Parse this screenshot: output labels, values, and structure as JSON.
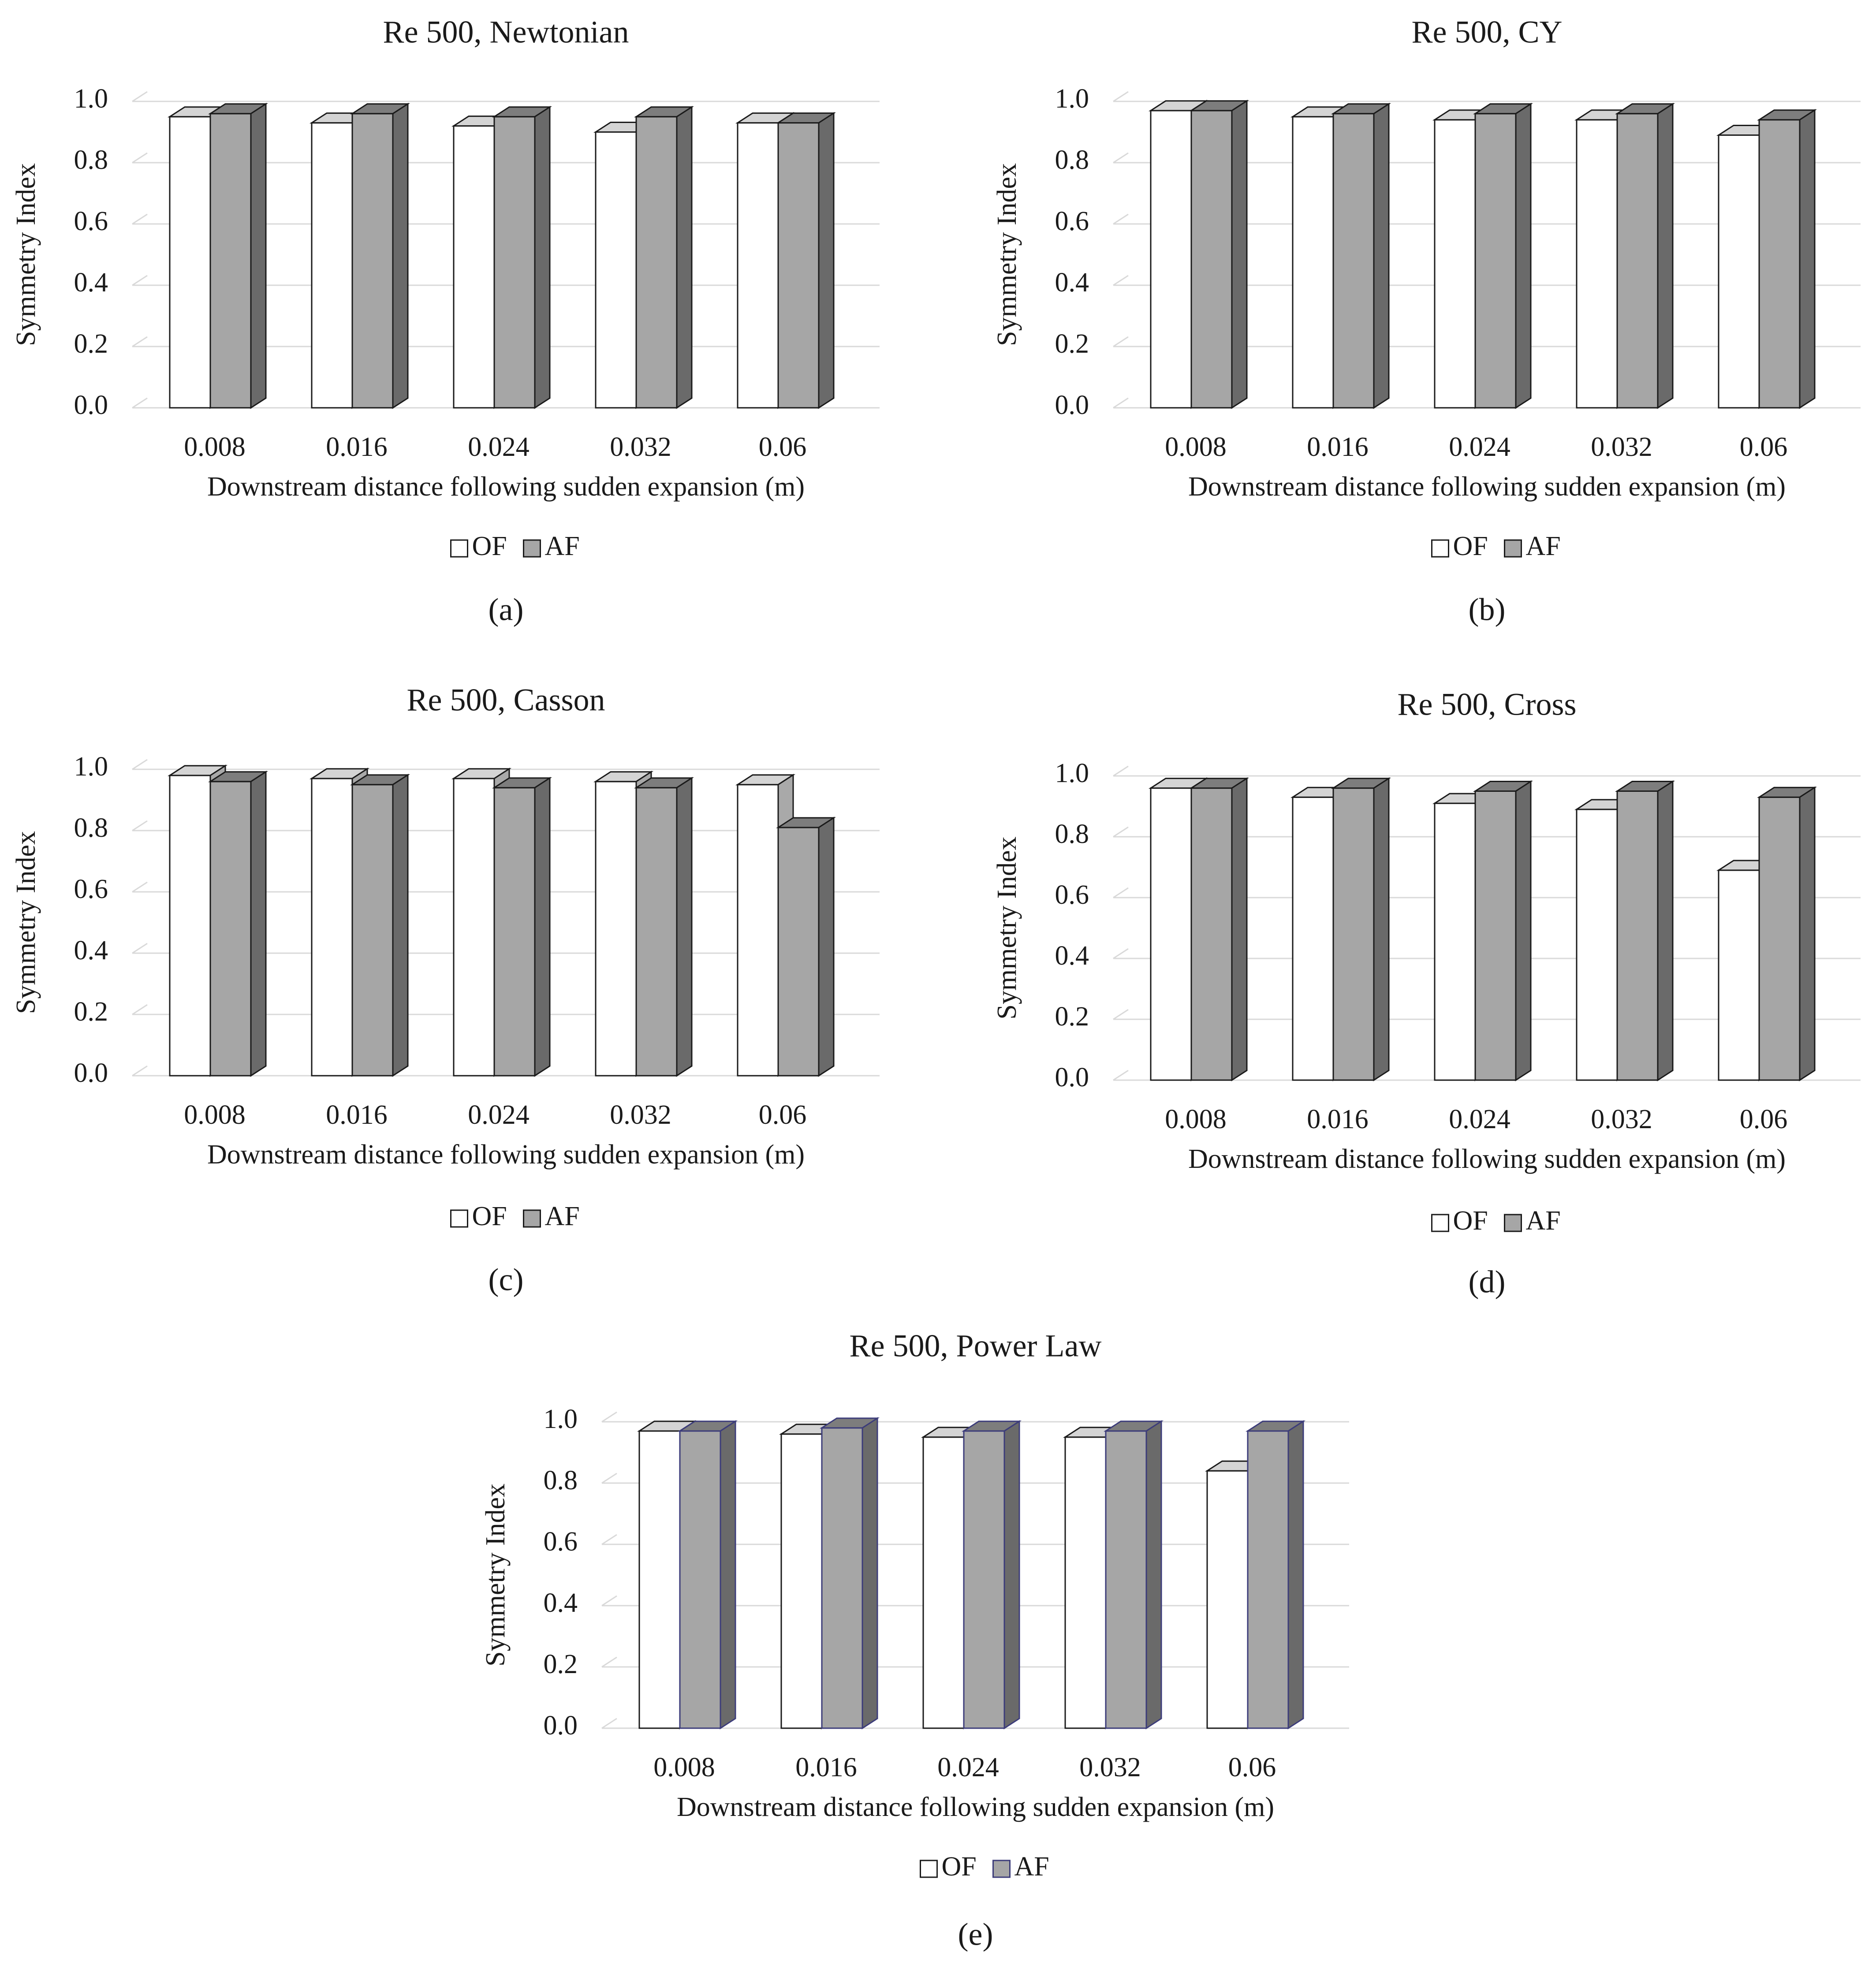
{
  "figure": {
    "background": "#ffffff"
  },
  "colors": {
    "of_front": "#ffffff",
    "of_top": "#d4d4d4",
    "of_side": "#a9a9a9",
    "af_front": "#a6a6a6",
    "af_top": "#7d7d7d",
    "af_side": "#6a6a6a",
    "edge": "#1a1a1a",
    "edge_e": "#3c3c7a",
    "grid": "#d9d9d9"
  },
  "chart_data": [
    {
      "id": "a",
      "type": "bar",
      "title": "Re 500, Newtonian",
      "xlabel": "Downstream distance following  sudden expansion (m)",
      "ylabel": "Symmetry Index",
      "ylim": [
        0,
        1.0
      ],
      "yticks": [
        "0.0",
        "0.2",
        "0.4",
        "0.6",
        "0.8",
        "1.0"
      ],
      "categories": [
        "0.008",
        "0.016",
        "0.024",
        "0.032",
        "0.06"
      ],
      "series": [
        {
          "name": "OF",
          "values": [
            0.95,
            0.93,
            0.92,
            0.9,
            0.93
          ]
        },
        {
          "name": "AF",
          "values": [
            0.96,
            0.96,
            0.95,
            0.95,
            0.93
          ]
        }
      ],
      "legend": {
        "placement": "bottom",
        "labels": [
          "OF",
          "AF"
        ]
      },
      "caption": "(a)",
      "grid": true
    },
    {
      "id": "b",
      "type": "bar",
      "title": "Re 500, CY",
      "xlabel": "Downstream distance following  sudden expansion (m)",
      "ylabel": "Symmetry Index",
      "ylim": [
        0,
        1.0
      ],
      "yticks": [
        "0.0",
        "0.2",
        "0.4",
        "0.6",
        "0.8",
        "1.0"
      ],
      "categories": [
        "0.008",
        "0.016",
        "0.024",
        "0.032",
        "0.06"
      ],
      "series": [
        {
          "name": "OF",
          "values": [
            0.97,
            0.95,
            0.94,
            0.94,
            0.89
          ]
        },
        {
          "name": "AF",
          "values": [
            0.97,
            0.96,
            0.96,
            0.96,
            0.94
          ]
        }
      ],
      "legend": {
        "placement": "bottom",
        "labels": [
          "OF",
          "AF"
        ]
      },
      "caption": "(b)",
      "grid": true
    },
    {
      "id": "c",
      "type": "bar",
      "title": "Re 500, Casson",
      "xlabel": "Downstream distance following  sudden expansion (m)",
      "ylabel": "Symmetry Index",
      "ylim": [
        0,
        1.0
      ],
      "yticks": [
        "0.0",
        "0.2",
        "0.4",
        "0.6",
        "0.8",
        "1.0"
      ],
      "categories": [
        "0.008",
        "0.016",
        "0.024",
        "0.032",
        "0.06"
      ],
      "series": [
        {
          "name": "OF",
          "values": [
            0.98,
            0.97,
            0.97,
            0.96,
            0.95
          ]
        },
        {
          "name": "AF",
          "values": [
            0.96,
            0.95,
            0.94,
            0.94,
            0.81
          ]
        }
      ],
      "legend": {
        "placement": "bottom",
        "labels": [
          "OF",
          "AF"
        ]
      },
      "caption": "(c)",
      "grid": true
    },
    {
      "id": "d",
      "type": "bar",
      "title": "Re 500, Cross",
      "xlabel": "Downstream distance following  sudden expansion (m)",
      "ylabel": "Symmetry Index",
      "ylim": [
        0,
        1.0
      ],
      "yticks": [
        "0.0",
        "0.2",
        "0.4",
        "0.6",
        "0.8",
        "1.0"
      ],
      "categories": [
        "0.008",
        "0.016",
        "0.024",
        "0.032",
        "0.06"
      ],
      "series": [
        {
          "name": "OF",
          "values": [
            0.96,
            0.93,
            0.91,
            0.89,
            0.69
          ]
        },
        {
          "name": "AF",
          "values": [
            0.96,
            0.96,
            0.95,
            0.95,
            0.93
          ]
        }
      ],
      "legend": {
        "placement": "bottom",
        "labels": [
          "OF",
          "AF"
        ]
      },
      "caption": "(d)",
      "grid": true
    },
    {
      "id": "e",
      "type": "bar",
      "title": "Re 500, Power Law",
      "xlabel": "Downstream distance following  sudden expansion (m)",
      "ylabel": "Symmetry Index",
      "ylim": [
        0,
        1.0
      ],
      "yticks": [
        "0.0",
        "0.2",
        "0.4",
        "0.6",
        "0.8",
        "1.0"
      ],
      "categories": [
        "0.008",
        "0.016",
        "0.024",
        "0.032",
        "0.06"
      ],
      "series": [
        {
          "name": "OF",
          "values": [
            0.97,
            0.96,
            0.95,
            0.95,
            0.84
          ]
        },
        {
          "name": "AF",
          "values": [
            0.97,
            0.98,
            0.97,
            0.97,
            0.97
          ]
        }
      ],
      "legend": {
        "placement": "bottom",
        "labels": [
          "OF",
          "AF"
        ]
      },
      "caption": "(e)",
      "grid": true
    }
  ]
}
